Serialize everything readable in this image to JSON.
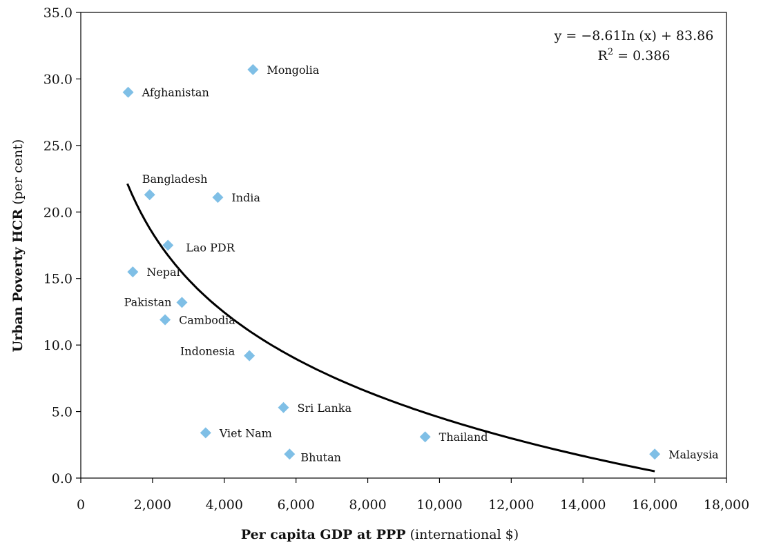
{
  "chart_data": {
    "type": "scatter",
    "xlabel_bold": "Per capita GDP at PPP",
    "xlabel_rest": " (international $)",
    "ylabel_bold": "Urban Poverty HCR",
    "ylabel_rest": " (per cent)",
    "xlim": [
      0,
      18000
    ],
    "ylim": [
      0,
      35
    ],
    "x_ticks": [
      {
        "value": 0,
        "label": "0"
      },
      {
        "value": 2000,
        "label": "2,000"
      },
      {
        "value": 4000,
        "label": "4,000"
      },
      {
        "value": 6000,
        "label": "6,000"
      },
      {
        "value": 8000,
        "label": "8,000"
      },
      {
        "value": 10000,
        "label": "10,000"
      },
      {
        "value": 12000,
        "label": "12,000"
      },
      {
        "value": 14000,
        "label": "14,000"
      },
      {
        "value": 16000,
        "label": "16,000"
      },
      {
        "value": 18000,
        "label": "18,000"
      }
    ],
    "y_ticks": [
      {
        "value": 0,
        "label": "0.0"
      },
      {
        "value": 5,
        "label": "5.0"
      },
      {
        "value": 10,
        "label": "10.0"
      },
      {
        "value": 15,
        "label": "15.0"
      },
      {
        "value": 20,
        "label": "20.0"
      },
      {
        "value": 25,
        "label": "25.0"
      },
      {
        "value": 30,
        "label": "30.0"
      },
      {
        "value": 35,
        "label": "35.0"
      }
    ],
    "marker_color": "#7fbfe6",
    "points": [
      {
        "label": "Afghanistan",
        "x": 1320,
        "y": 29.0,
        "pos": "right"
      },
      {
        "label": "Mongolia",
        "x": 4800,
        "y": 30.7,
        "pos": "right"
      },
      {
        "label": "Bangladesh",
        "x": 1920,
        "y": 21.3,
        "pos": "above-right"
      },
      {
        "label": "India",
        "x": 3820,
        "y": 21.1,
        "pos": "right"
      },
      {
        "label": "Lao PDR",
        "x": 2430,
        "y": 17.5,
        "pos": "right-far"
      },
      {
        "label": "Nepal",
        "x": 1450,
        "y": 15.5,
        "pos": "right"
      },
      {
        "label": "Pakistan",
        "x": 2820,
        "y": 13.2,
        "pos": "left"
      },
      {
        "label": "Cambodia",
        "x": 2350,
        "y": 11.9,
        "pos": "right"
      },
      {
        "label": "Indonesia",
        "x": 4700,
        "y": 9.2,
        "pos": "left-above"
      },
      {
        "label": "Sri Lanka",
        "x": 5650,
        "y": 5.3,
        "pos": "right"
      },
      {
        "label": "Viet Nam",
        "x": 3480,
        "y": 3.4,
        "pos": "right"
      },
      {
        "label": "Bhutan",
        "x": 5820,
        "y": 1.8,
        "pos": "right-below"
      },
      {
        "label": "Thailand",
        "x": 9600,
        "y": 3.1,
        "pos": "right"
      },
      {
        "label": "Malaysia",
        "x": 16000,
        "y": 1.8,
        "pos": "right"
      }
    ],
    "trendline": {
      "type": "logarithmic",
      "a": -8.61,
      "b": 83.86,
      "x_range": [
        1300,
        16000
      ],
      "equation": "y = −8.61In (x) + 83.86",
      "r2_prefix": "R",
      "r2_sup": "2",
      "r2_value": " = 0.386"
    }
  }
}
